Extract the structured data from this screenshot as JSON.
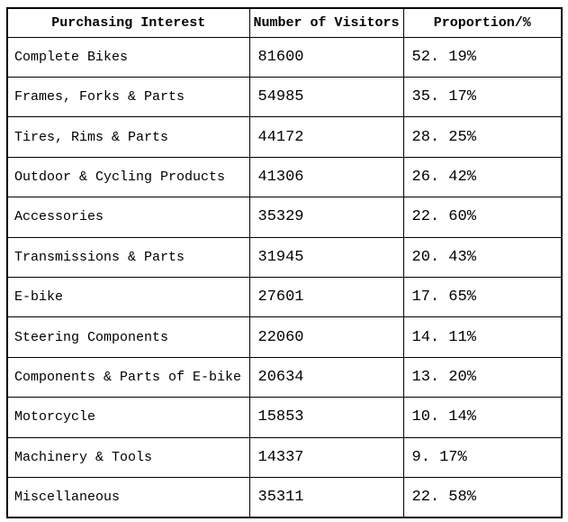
{
  "chart_data": {
    "type": "table",
    "title": "",
    "columns": [
      "Purchasing Interest",
      "Number of Visitors",
      "Proportion/%"
    ],
    "rows": [
      {
        "interest": "Complete Bikes",
        "visitors": "81600",
        "proportion": "52. 19%"
      },
      {
        "interest": "Frames, Forks & Parts",
        "visitors": "54985",
        "proportion": "35. 17%"
      },
      {
        "interest": "Tires, Rims & Parts",
        "visitors": "44172",
        "proportion": "28. 25%"
      },
      {
        "interest": "Outdoor & Cycling Products",
        "visitors": "41306",
        "proportion": "26. 42%"
      },
      {
        "interest": "Accessories",
        "visitors": "35329",
        "proportion": "22. 60%"
      },
      {
        "interest": "Transmissions & Parts",
        "visitors": "31945",
        "proportion": "20. 43%"
      },
      {
        "interest": "E-bike",
        "visitors": "27601",
        "proportion": "17. 65%"
      },
      {
        "interest": "Steering Components",
        "visitors": "22060",
        "proportion": "14. 11%"
      },
      {
        "interest": "Components & Parts of E-bike",
        "visitors": "20634",
        "proportion": "13. 20%"
      },
      {
        "interest": "Motorcycle",
        "visitors": "15853",
        "proportion": "10. 14%"
      },
      {
        "interest": "Machinery & Tools",
        "visitors": "14337",
        "proportion": "9. 17%"
      },
      {
        "interest": "Miscellaneous",
        "visitors": "35311",
        "proportion": "22. 58%"
      }
    ],
    "numeric": {
      "visitors": [
        81600,
        54985,
        44172,
        41306,
        35329,
        31945,
        27601,
        22060,
        20634,
        15853,
        14337,
        35311
      ],
      "proportion_percent": [
        52.19,
        35.17,
        28.25,
        26.42,
        22.6,
        20.43,
        17.65,
        14.11,
        13.2,
        10.14,
        9.17,
        22.58
      ]
    },
    "colors": {
      "border": "#000000",
      "text": "#000000",
      "background": "#ffffff"
    }
  }
}
